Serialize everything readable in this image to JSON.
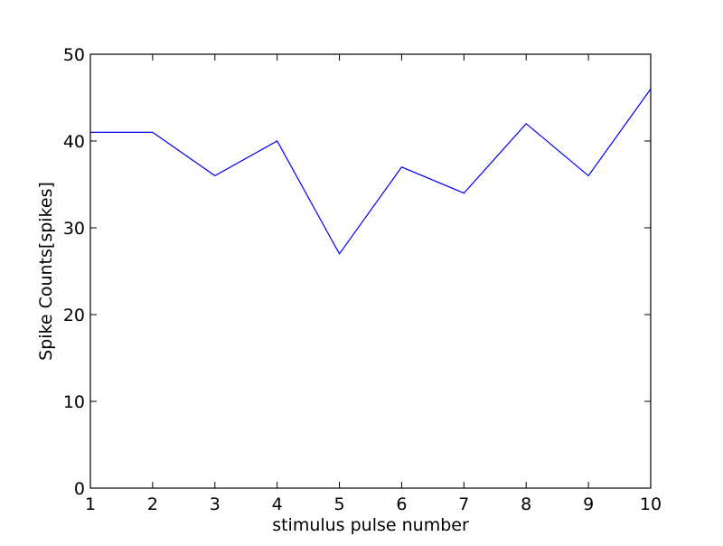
{
  "chart_data": {
    "type": "line",
    "title": "",
    "xlabel": "stimulus pulse number",
    "ylabel": "Spike Counts[spikes]",
    "xlim": [
      1,
      10
    ],
    "ylim": [
      0,
      50
    ],
    "xticks": [
      1,
      2,
      3,
      4,
      5,
      6,
      7,
      8,
      9,
      10
    ],
    "yticks": [
      0,
      10,
      20,
      30,
      40,
      50
    ],
    "grid": false,
    "legend": "none",
    "series": [
      {
        "color": "#0000ff",
        "x": [
          1,
          2,
          3,
          4,
          5,
          6,
          7,
          8,
          9,
          10
        ],
        "y": [
          41,
          41,
          36,
          40,
          27,
          37,
          34,
          42,
          36,
          46
        ]
      }
    ]
  }
}
